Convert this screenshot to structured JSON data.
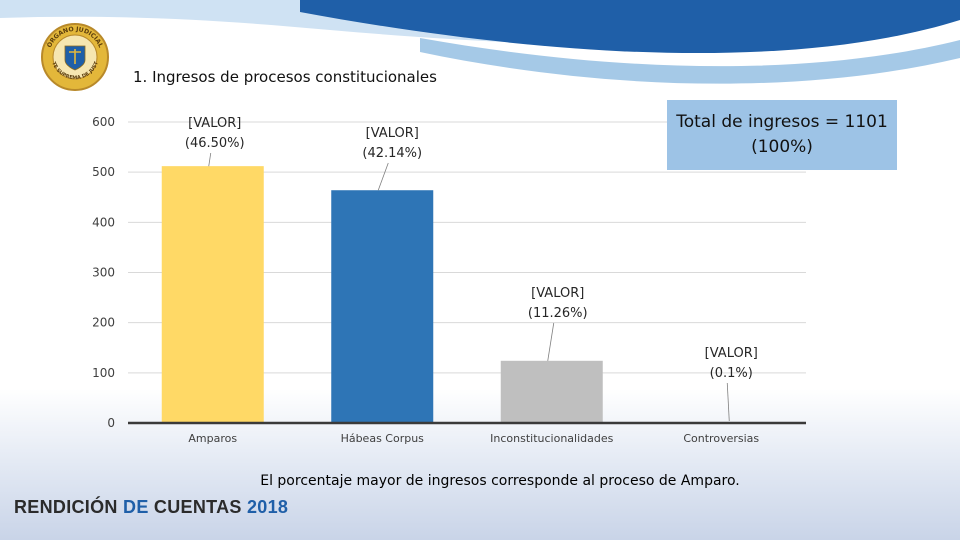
{
  "seal": {
    "top_text": "ÓRGANO JUDICIAL",
    "bottom_text": "CORTE SUPREMA DE JUSTICIA"
  },
  "colors": {
    "amparos": "#ffd966",
    "habeas": "#2e75b6",
    "inconst": "#bfbfbf",
    "controv": "#bfbfbf",
    "total_box": "#9dc3e6",
    "wave_dark": "#1f5fa8",
    "wave_light": "#7fb2dd"
  },
  "chart_data": {
    "type": "bar",
    "title": "1. Ingresos de procesos constitucionales",
    "categories": [
      "Amparos",
      "Hábeas Corpus",
      "Inconstitucionalidades",
      "Controversias"
    ],
    "values": [
      512,
      464,
      124,
      1
    ],
    "data_labels": [
      [
        "[VALOR]",
        "(46.50%)"
      ],
      [
        "[VALOR]",
        "(42.14%)"
      ],
      [
        "[VALOR]",
        "(11.26%)"
      ],
      [
        "[VALOR]",
        "(0.1%)"
      ]
    ],
    "ylim": [
      0,
      600
    ],
    "yticks": [
      "0",
      "100",
      "200",
      "300",
      "400",
      "500",
      "600"
    ],
    "ytick_values": [
      0,
      100,
      200,
      300,
      400,
      500,
      600
    ],
    "xlabel": "",
    "ylabel": "",
    "grid": true
  },
  "total_box": {
    "line1": "Total de ingresos = 1101",
    "line2": "(100%)"
  },
  "footnote": "El porcentaje mayor de ingresos corresponde al proceso de Amparo.",
  "brand": {
    "part1": "RENDICIÓN ",
    "part2": "DE",
    "part3": " CUENTAS ",
    "year": "2018"
  }
}
